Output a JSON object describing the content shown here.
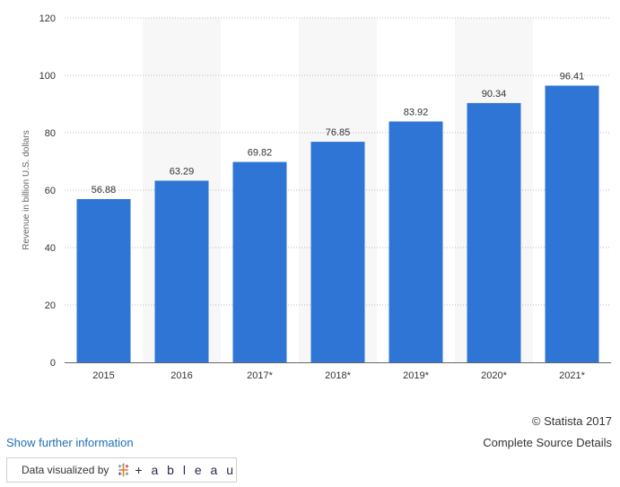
{
  "chart_data": {
    "type": "bar",
    "categories": [
      "2015",
      "2016",
      "2017*",
      "2018*",
      "2019*",
      "2020*",
      "2021*"
    ],
    "values": [
      56.88,
      63.29,
      69.82,
      76.85,
      83.92,
      90.34,
      96.41
    ],
    "value_labels": [
      "56.88",
      "63.29",
      "69.82",
      "76.85",
      "83.92",
      "90.34",
      "96.41"
    ],
    "ylabel": "Revenue in billion U.S. dollars",
    "xlabel": "",
    "title": "",
    "ylim": [
      0,
      120
    ],
    "yticks": [
      "0",
      "20",
      "40",
      "60",
      "80",
      "100",
      "120"
    ],
    "grid": "horizontal dotted",
    "bar_color": "#2e75d6",
    "band_color": "#f7f7f7"
  },
  "footer": {
    "copyright": "© Statista 2017",
    "source_link": "Complete Source Details",
    "more_info_link": "Show further information",
    "visualized_by": "Data visualized by",
    "tableau_word": "+ a b l e a u",
    "link_color": "#1f6fb5"
  }
}
